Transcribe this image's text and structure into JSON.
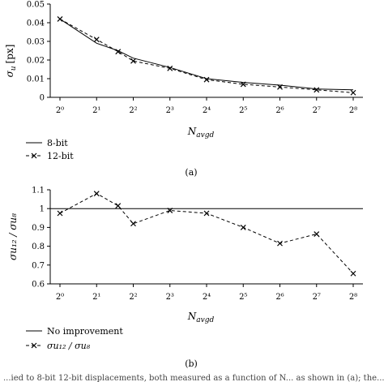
{
  "chart_data": [
    {
      "type": "line",
      "panel_label": "(a)",
      "ylabel": "σ",
      "ylabel_sub": "u",
      "ylabel_unit": "[px]",
      "xlabel": "N",
      "xlabel_sub": "avgd",
      "x_scale": "log2",
      "x_tick_values": [
        1,
        2,
        4,
        8,
        16,
        32,
        64,
        128,
        256
      ],
      "x_tick_labels": [
        "2⁰",
        "2¹",
        "2²",
        "2³",
        "2⁴",
        "2⁵",
        "2⁶",
        "2⁷",
        "2⁸"
      ],
      "xlim": [
        1,
        256
      ],
      "ylim": [
        0,
        0.05
      ],
      "y_ticks": [
        "0",
        "0.01",
        "0.02",
        "0.03",
        "0.04",
        "0.05"
      ],
      "legend_position": "bottom-left",
      "grid": false,
      "series": [
        {
          "name": "8-bit",
          "style": "solid",
          "marker": "none",
          "x": [
            1,
            2,
            3,
            4,
            8,
            16,
            32,
            64,
            128,
            256
          ],
          "y": [
            0.042,
            0.029,
            0.025,
            0.021,
            0.016,
            0.01,
            0.008,
            0.0065,
            0.0045,
            0.004
          ]
        },
        {
          "name": "12-bit",
          "style": "dashed",
          "marker": "x",
          "x": [
            1,
            2,
            3,
            4,
            8,
            16,
            32,
            64,
            128,
            256
          ],
          "y": [
            0.042,
            0.031,
            0.0245,
            0.0195,
            0.0155,
            0.0095,
            0.007,
            0.0055,
            0.004,
            0.0025
          ]
        }
      ]
    },
    {
      "type": "line",
      "panel_label": "(b)",
      "ylabel": "σu₁₂ / σu₈",
      "xlabel": "N",
      "xlabel_sub": "avgd",
      "x_scale": "log2",
      "x_tick_values": [
        1,
        2,
        4,
        8,
        16,
        32,
        64,
        128,
        256
      ],
      "x_tick_labels": [
        "2⁰",
        "2¹",
        "2²",
        "2³",
        "2⁴",
        "2⁵",
        "2⁶",
        "2⁷",
        "2⁸"
      ],
      "xlim": [
        1,
        256
      ],
      "ylim": [
        0.6,
        1.1
      ],
      "y_ticks": [
        "0.6",
        "0.7",
        "0.8",
        "0.9",
        "1",
        "1.1"
      ],
      "legend_position": "bottom-left",
      "grid": false,
      "reference_line": {
        "name": "No improvement",
        "y": 1.0
      },
      "series": [
        {
          "name": "σu₁₂ / σu₈",
          "style": "dashed",
          "marker": "x",
          "x": [
            1,
            2,
            3,
            4,
            8,
            16,
            32,
            64,
            128,
            256
          ],
          "y": [
            0.975,
            1.08,
            1.015,
            0.92,
            0.99,
            0.975,
            0.9,
            0.815,
            0.865,
            0.655
          ]
        }
      ]
    }
  ],
  "caption_fragment": "...ied to 8-bit 12-bit displacements, both measured as a function of N... as shown in (a); the..."
}
